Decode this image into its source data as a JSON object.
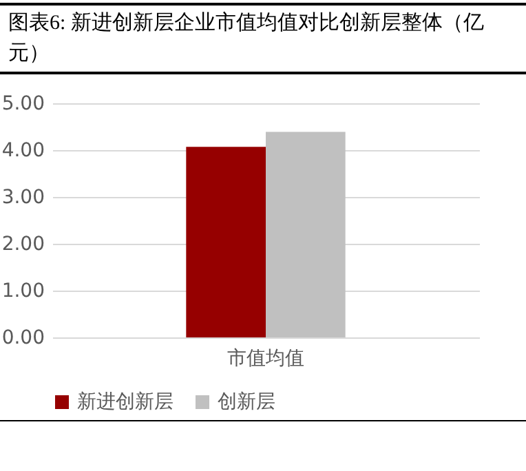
{
  "chart_data": {
    "type": "bar",
    "title": "图表6:  新进创新层企业市值均值对比创新层整体（亿元）",
    "categories": [
      "市值均值"
    ],
    "series": [
      {
        "name": "新进创新层",
        "color": "#960000",
        "values": [
          4.07
        ]
      },
      {
        "name": "创新层",
        "color": "#c0c0c0",
        "values": [
          4.39
        ]
      }
    ],
    "ylim": [
      0,
      5
    ],
    "yticks": [
      {
        "value": 0,
        "label": "0.00"
      },
      {
        "value": 1,
        "label": "1.00"
      },
      {
        "value": 2,
        "label": "2.00"
      },
      {
        "value": 3,
        "label": "3.00"
      },
      {
        "value": 4,
        "label": "4.00"
      },
      {
        "value": 5,
        "label": "5.00"
      }
    ],
    "grid": "y",
    "legend": "bottom"
  }
}
